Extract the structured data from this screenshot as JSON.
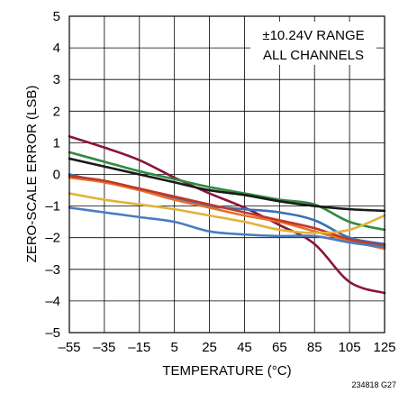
{
  "chart_data": {
    "type": "line",
    "title": "",
    "xlabel": "TEMPERATURE (°C)",
    "ylabel": "ZERO-SCALE ERROR (LSB)",
    "xlim": [
      -55,
      125
    ],
    "ylim": [
      -5,
      5
    ],
    "x_ticks": [
      -55,
      -35,
      -15,
      5,
      25,
      45,
      65,
      85,
      105,
      125
    ],
    "y_ticks": [
      5,
      4,
      3,
      2,
      1,
      0,
      -1,
      -2,
      -3,
      -4,
      -5
    ],
    "x_tick_labels": [
      "–55",
      "–35",
      "–15",
      "5",
      "25",
      "45",
      "65",
      "85",
      "105",
      "125"
    ],
    "y_tick_labels": [
      "5",
      "4",
      "3",
      "2",
      "1",
      "0",
      "–1",
      "–2",
      "–3",
      "–4",
      "–5"
    ],
    "grid": true,
    "annotation_lines": [
      "±10.24V RANGE",
      "ALL CHANNELS"
    ],
    "figure_id": "234818 G27",
    "x": [
      -55,
      -35,
      -15,
      5,
      25,
      45,
      65,
      85,
      105,
      125
    ],
    "series": [
      {
        "color": "#8b1538",
        "values": [
          1.2,
          0.85,
          0.45,
          -0.1,
          -0.6,
          -1.05,
          -1.6,
          -2.2,
          -3.4,
          -3.75
        ]
      },
      {
        "color": "#2e8b3e",
        "values": [
          0.7,
          0.4,
          0.1,
          -0.15,
          -0.4,
          -0.6,
          -0.8,
          -0.95,
          -1.5,
          -1.75
        ]
      },
      {
        "color": "#1a1a1a",
        "values": [
          0.5,
          0.25,
          0.0,
          -0.25,
          -0.5,
          -0.65,
          -0.85,
          -1.0,
          -1.1,
          -1.15
        ]
      },
      {
        "color": "#3a6fb5",
        "values": [
          0.0,
          -0.25,
          -0.45,
          -0.75,
          -1.0,
          -1.1,
          -1.2,
          -1.45,
          -2.0,
          -2.2
        ]
      },
      {
        "color": "#e8702a",
        "values": [
          -0.1,
          -0.25,
          -0.5,
          -0.8,
          -1.05,
          -1.3,
          -1.5,
          -1.8,
          -2.1,
          -2.35
        ]
      },
      {
        "color": "#c0392b",
        "values": [
          -0.05,
          -0.2,
          -0.45,
          -0.7,
          -0.95,
          -1.2,
          -1.45,
          -1.7,
          -2.05,
          -2.25
        ]
      },
      {
        "color": "#e0b33a",
        "values": [
          -0.6,
          -0.8,
          -0.95,
          -1.1,
          -1.3,
          -1.5,
          -1.75,
          -1.85,
          -1.75,
          -1.3
        ]
      },
      {
        "color": "#4a7cc0",
        "values": [
          -1.05,
          -1.2,
          -1.35,
          -1.5,
          -1.8,
          -1.9,
          -1.95,
          -1.95,
          -2.15,
          -2.3
        ]
      }
    ]
  }
}
